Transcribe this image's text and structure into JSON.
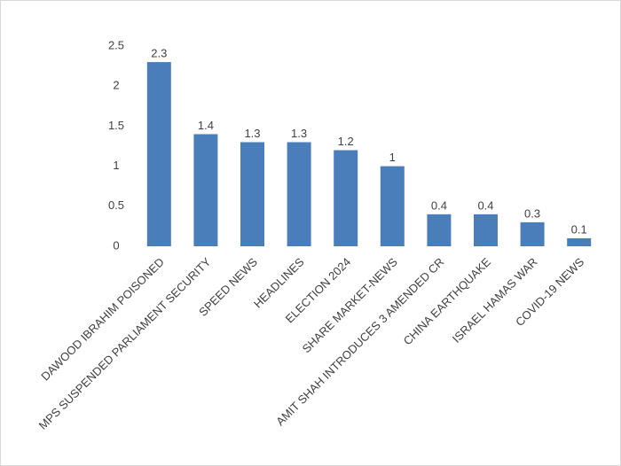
{
  "chart_data": {
    "type": "bar",
    "categories": [
      "DAWOOD IBRAHIM POISONED",
      "MPS SUSPENDED PARLIAMENT SECURITY",
      "SPEED NEWS",
      "HEADLINES",
      "ELECTION 2024",
      "SHARE MARKET-NEWS",
      "AMIT SHAH INTRODUCES 3 AMENDED CR",
      "CHINA EARTHQUAKE",
      "ISRAEL HAMAS WAR",
      "COVID-19 NEWS"
    ],
    "values": [
      2.3,
      1.4,
      1.3,
      1.3,
      1.2,
      1,
      0.4,
      0.4,
      0.3,
      0.1
    ],
    "color": "#4a7ebb",
    "ylim": [
      0,
      2.5
    ],
    "yticks": [
      0,
      0.5,
      1,
      1.5,
      2,
      2.5
    ],
    "grid": false
  }
}
